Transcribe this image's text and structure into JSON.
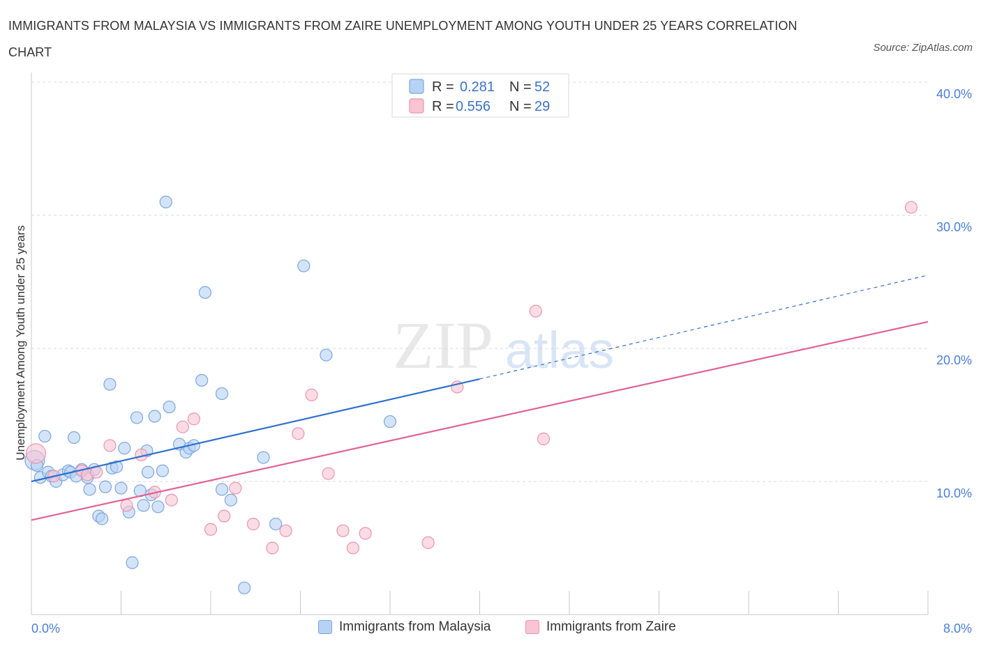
{
  "title": "IMMIGRANTS FROM MALAYSIA VS IMMIGRANTS FROM ZAIRE UNEMPLOYMENT AMONG YOUTH UNDER 25 YEARS CORRELATION CHART",
  "source": "Source: ZipAtlas.com",
  "watermark": {
    "zip": "ZIP",
    "atlas": "atlas"
  },
  "colors": {
    "blue_fill": "#b7d2f4",
    "blue_stroke": "#7aa6e0",
    "blue_line": "#2f6fcf",
    "pink_fill": "#f9c4d4",
    "pink_stroke": "#eb93b0",
    "pink_line": "#e2628f",
    "grid": "#d9d9d9",
    "axis_text": "#4a7fd4"
  },
  "legend": {
    "rows": [
      {
        "r_label": "R =",
        "r_value": "0.281",
        "n_label": "N =",
        "n_value": "52",
        "series": "malaysia"
      },
      {
        "r_label": "R =",
        "r_value": "0.556",
        "n_label": "N =",
        "n_value": "29",
        "series": "zaire"
      }
    ]
  },
  "bottom_legend": [
    {
      "label": "Immigrants from Malaysia",
      "series": "malaysia"
    },
    {
      "label": "Immigrants from Zaire",
      "series": "zaire"
    }
  ],
  "chart_data": {
    "type": "scatter",
    "title": "IMMIGRANTS FROM MALAYSIA VS IMMIGRANTS FROM ZAIRE UNEMPLOYMENT AMONG YOUTH UNDER 25 YEARS CORRELATION CHART",
    "xlabel": "",
    "ylabel": "Unemployment Among Youth under 25 years",
    "xlim": [
      0,
      8
    ],
    "ylim": [
      0,
      40
    ],
    "x_tick_labels": [
      "0.0%",
      "8.0%"
    ],
    "y_ticks": [
      10,
      20,
      30,
      40
    ],
    "y_tick_labels": [
      "10.0%",
      "20.0%",
      "30.0%",
      "40.0%"
    ],
    "grid": true,
    "legend_position": "top-center",
    "series": [
      {
        "name": "Immigrants from Malaysia",
        "key": "malaysia",
        "R": 0.281,
        "N": 52,
        "trend": {
          "x0": 0,
          "y0": 10.0,
          "x1": 4.0,
          "y1": 17.7,
          "dashed_to_x": 8.0,
          "dashed_to_y": 25.5
        },
        "points": [
          [
            0.03,
            11.6
          ],
          [
            0.05,
            11.2
          ],
          [
            0.08,
            10.3
          ],
          [
            0.12,
            13.4
          ],
          [
            0.15,
            10.7
          ],
          [
            0.18,
            10.4
          ],
          [
            0.22,
            10.0
          ],
          [
            0.28,
            10.5
          ],
          [
            0.33,
            10.8
          ],
          [
            0.35,
            10.7
          ],
          [
            0.38,
            13.3
          ],
          [
            0.4,
            10.4
          ],
          [
            0.45,
            10.9
          ],
          [
            0.5,
            10.3
          ],
          [
            0.52,
            9.4
          ],
          [
            0.56,
            10.9
          ],
          [
            0.6,
            7.4
          ],
          [
            0.63,
            7.2
          ],
          [
            0.66,
            9.6
          ],
          [
            0.7,
            17.3
          ],
          [
            0.72,
            11.0
          ],
          [
            0.76,
            11.1
          ],
          [
            0.8,
            9.5
          ],
          [
            0.83,
            12.5
          ],
          [
            0.87,
            7.7
          ],
          [
            0.9,
            3.9
          ],
          [
            0.94,
            14.8
          ],
          [
            0.97,
            9.3
          ],
          [
            1.0,
            8.2
          ],
          [
            1.04,
            10.7
          ],
          [
            1.07,
            9.0
          ],
          [
            1.1,
            14.9
          ],
          [
            1.13,
            8.1
          ],
          [
            1.17,
            10.8
          ],
          [
            1.2,
            31.0
          ],
          [
            1.23,
            15.6
          ],
          [
            1.32,
            12.8
          ],
          [
            1.38,
            12.2
          ],
          [
            1.41,
            12.5
          ],
          [
            1.45,
            12.7
          ],
          [
            1.52,
            17.6
          ],
          [
            1.55,
            24.2
          ],
          [
            1.7,
            16.6
          ],
          [
            1.7,
            9.4
          ],
          [
            1.78,
            8.6
          ],
          [
            1.9,
            2.0
          ],
          [
            2.07,
            11.8
          ],
          [
            2.18,
            6.8
          ],
          [
            2.43,
            26.2
          ],
          [
            2.63,
            19.5
          ],
          [
            3.2,
            14.5
          ],
          [
            1.03,
            12.3
          ]
        ]
      },
      {
        "name": "Immigrants from Zaire",
        "key": "zaire",
        "R": 0.556,
        "N": 29,
        "trend": {
          "x0": 0,
          "y0": 7.1,
          "x1": 8.0,
          "y1": 22.0
        },
        "points": [
          [
            0.04,
            12.1
          ],
          [
            0.2,
            10.4
          ],
          [
            0.45,
            10.8
          ],
          [
            0.5,
            10.5
          ],
          [
            0.58,
            10.7
          ],
          [
            0.7,
            12.7
          ],
          [
            0.85,
            8.2
          ],
          [
            0.98,
            12.0
          ],
          [
            1.1,
            9.2
          ],
          [
            1.25,
            8.6
          ],
          [
            1.35,
            14.1
          ],
          [
            1.45,
            14.7
          ],
          [
            1.6,
            6.4
          ],
          [
            1.72,
            7.4
          ],
          [
            1.82,
            9.5
          ],
          [
            1.98,
            6.8
          ],
          [
            2.15,
            5.0
          ],
          [
            2.27,
            6.3
          ],
          [
            2.38,
            13.6
          ],
          [
            2.5,
            16.5
          ],
          [
            2.65,
            10.6
          ],
          [
            2.78,
            6.3
          ],
          [
            2.87,
            5.0
          ],
          [
            2.98,
            6.1
          ],
          [
            3.54,
            5.4
          ],
          [
            3.8,
            17.1
          ],
          [
            4.5,
            22.8
          ],
          [
            4.57,
            13.2
          ],
          [
            7.85,
            30.6
          ]
        ]
      }
    ]
  }
}
